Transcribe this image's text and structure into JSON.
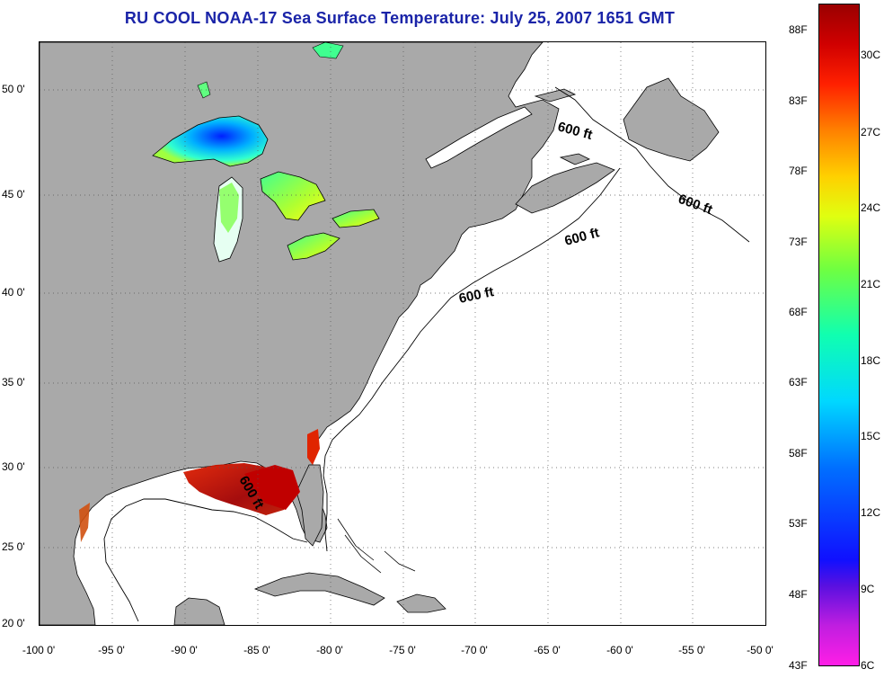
{
  "title": "RU COOL  NOAA-17  Sea Surface Temperature:  July 25, 2007 1651 GMT",
  "lat_labels": [
    "50 0'",
    "45 0'",
    "40 0'",
    "35 0'",
    "30 0'",
    "25 0'",
    "20 0'"
  ],
  "lon_labels": [
    "-100 0'",
    "-95 0'",
    "-90 0'",
    "-85 0'",
    "-80 0'",
    "-75 0'",
    "-70 0'",
    "-65 0'",
    "-60 0'",
    "-55 0'",
    "-50 0'"
  ],
  "contour_label": "600 ft",
  "colorbar": {
    "fahrenheit": [
      "88F",
      "83F",
      "78F",
      "73F",
      "68F",
      "63F",
      "58F",
      "53F",
      "48F",
      "43F"
    ],
    "celsius": [
      "30C",
      "27C",
      "24C",
      "21C",
      "18C",
      "15C",
      "12C",
      "9C",
      "6C"
    ]
  },
  "colors": {
    "land": "#a9a9a9",
    "ocean": "#ffffff",
    "title": "#1a24a8"
  }
}
